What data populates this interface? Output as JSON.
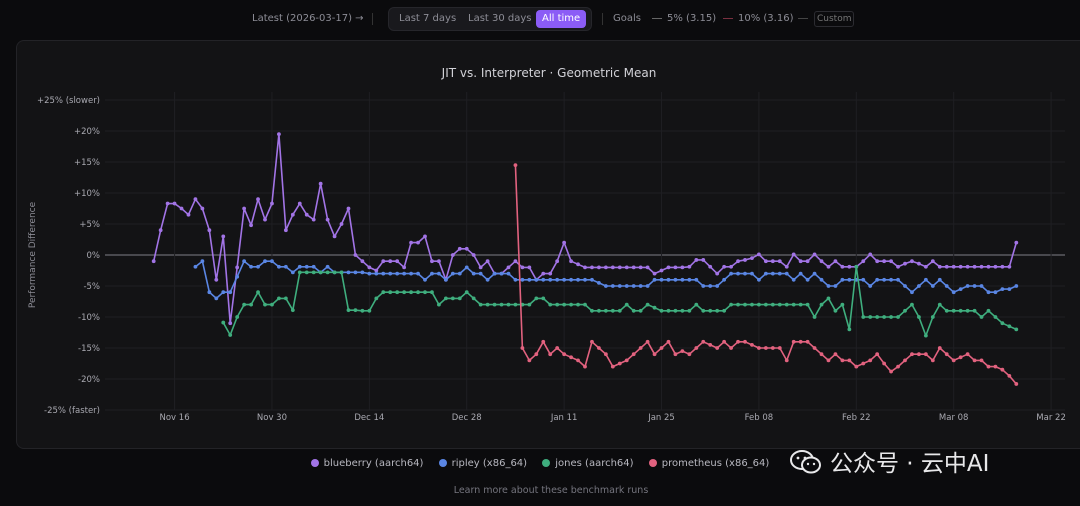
{
  "toolbar": {
    "latest": "Latest (2026-03-17) →",
    "ranges": [
      "Last 7 days",
      "Last 30 days",
      "All time"
    ],
    "active_range": "All time",
    "goals_label": "Goals",
    "goal_5": "5% (3.15)",
    "goal_10": "10% (3.16)",
    "custom_placeholder": "Custom",
    "accent": "#8b5cf6"
  },
  "learn_more": "Learn more about these benchmark runs",
  "watermark": "公众号 · 云中AI",
  "chart_data": {
    "type": "line",
    "title": "JIT vs. Interpreter · Geometric Mean",
    "xlabel": "",
    "ylabel": "Performance Difference",
    "ylim": [
      -25,
      25
    ],
    "xlim": [
      "2025-11-06",
      "2026-03-24"
    ],
    "grid": true,
    "legend": "bottom",
    "y_ticks": [
      {
        "value": 25,
        "label": "+25% (slower)"
      },
      {
        "value": 20,
        "label": "+20%"
      },
      {
        "value": 15,
        "label": "+15%"
      },
      {
        "value": 10,
        "label": "+10%"
      },
      {
        "value": 5,
        "label": "+5%"
      },
      {
        "value": 0,
        "label": "0%"
      },
      {
        "value": -5,
        "label": "-5%"
      },
      {
        "value": -10,
        "label": "-10%"
      },
      {
        "value": -15,
        "label": "-15%"
      },
      {
        "value": -20,
        "label": "-20%"
      },
      {
        "value": -25,
        "label": "-25% (faster)"
      }
    ],
    "x_ticks": [
      {
        "date": "2025-11-16",
        "label": "Nov 16"
      },
      {
        "date": "2025-11-30",
        "label": "Nov 30"
      },
      {
        "date": "2025-12-14",
        "label": "Dec 14"
      },
      {
        "date": "2025-12-28",
        "label": "Dec 28"
      },
      {
        "date": "2026-01-11",
        "label": "Jan 11"
      },
      {
        "date": "2026-01-25",
        "label": "Jan 25"
      },
      {
        "date": "2026-02-08",
        "label": "Feb 08"
      },
      {
        "date": "2026-02-22",
        "label": "Feb 22"
      },
      {
        "date": "2026-03-08",
        "label": "Mar 08"
      },
      {
        "date": "2026-03-22",
        "label": "Mar 22"
      }
    ],
    "x": [
      "2025-11-13",
      "2025-11-14",
      "2025-11-15",
      "2025-11-16",
      "2025-11-17",
      "2025-11-18",
      "2025-11-19",
      "2025-11-20",
      "2025-11-21",
      "2025-11-22",
      "2025-11-23",
      "2025-11-24",
      "2025-11-25",
      "2025-11-26",
      "2025-11-27",
      "2025-11-28",
      "2025-11-29",
      "2025-11-30",
      "2025-12-01",
      "2025-12-02",
      "2025-12-03",
      "2025-12-04",
      "2025-12-05",
      "2025-12-06",
      "2025-12-07",
      "2025-12-08",
      "2025-12-09",
      "2025-12-10",
      "2025-12-11",
      "2025-12-12",
      "2025-12-13",
      "2025-12-14",
      "2025-12-15",
      "2025-12-16",
      "2025-12-17",
      "2025-12-18",
      "2025-12-19",
      "2025-12-20",
      "2025-12-21",
      "2025-12-22",
      "2025-12-23",
      "2025-12-24",
      "2025-12-25",
      "2025-12-26",
      "2025-12-27",
      "2025-12-28",
      "2025-12-29",
      "2025-12-30",
      "2025-12-31",
      "2026-01-01",
      "2026-01-02",
      "2026-01-03",
      "2026-01-04",
      "2026-01-05",
      "2026-01-06",
      "2026-01-07",
      "2026-01-08",
      "2026-01-09",
      "2026-01-10",
      "2026-01-11",
      "2026-01-12",
      "2026-01-13",
      "2026-01-14",
      "2026-01-15",
      "2026-01-16",
      "2026-01-17",
      "2026-01-18",
      "2026-01-19",
      "2026-01-20",
      "2026-01-21",
      "2026-01-22",
      "2026-01-23",
      "2026-01-24",
      "2026-01-25",
      "2026-01-26",
      "2026-01-27",
      "2026-01-28",
      "2026-01-29",
      "2026-01-30",
      "2026-01-31",
      "2026-02-01",
      "2026-02-02",
      "2026-02-03",
      "2026-02-04",
      "2026-02-05",
      "2026-02-06",
      "2026-02-07",
      "2026-02-08",
      "2026-02-09",
      "2026-02-10",
      "2026-02-11",
      "2026-02-12",
      "2026-02-13",
      "2026-02-14",
      "2026-02-15",
      "2026-02-16",
      "2026-02-17",
      "2026-02-18",
      "2026-02-19",
      "2026-02-20",
      "2026-02-21",
      "2026-02-22",
      "2026-02-23",
      "2026-02-24",
      "2026-02-25",
      "2026-02-26",
      "2026-02-27",
      "2026-02-28",
      "2026-03-01",
      "2026-03-02",
      "2026-03-03",
      "2026-03-04",
      "2026-03-05",
      "2026-03-06",
      "2026-03-07",
      "2026-03-08",
      "2026-03-09",
      "2026-03-10",
      "2026-03-11",
      "2026-03-12",
      "2026-03-13",
      "2026-03-14",
      "2026-03-15",
      "2026-03-16",
      "2026-03-17"
    ],
    "series": [
      {
        "name": "blueberry (aarch64)",
        "color": "#a274e6",
        "values": [
          -1,
          4,
          8.3,
          8.3,
          7.5,
          6.5,
          9,
          7.5,
          4,
          -4,
          3,
          -11,
          -2,
          7.5,
          4.8,
          9,
          5.7,
          8.3,
          19.5,
          4,
          6.5,
          8.3,
          6.5,
          5.7,
          11.5,
          5.7,
          3,
          5,
          7.5,
          0,
          -1,
          -2,
          -2.5,
          -1,
          -1,
          -1,
          -2,
          2,
          2,
          3,
          -1,
          -1,
          -4,
          0,
          1,
          1,
          0,
          -2,
          -1,
          -3,
          -3,
          -2,
          -1,
          -2,
          -2,
          -4,
          -3,
          -3,
          -1,
          2,
          -1,
          -1.5,
          -2,
          -2,
          -2,
          -2,
          -2,
          -2,
          -2,
          -2,
          -2,
          -2,
          -3,
          -2.5,
          -2,
          -2,
          -2,
          -1.9,
          -0.8,
          -0.8,
          -1.9,
          -3,
          -1.9,
          -1.9,
          -1,
          -0.8,
          -0.5,
          0.1,
          -1,
          -1,
          -1,
          -1.9,
          0.1,
          -1,
          -1,
          0.1,
          -1,
          -1.9,
          -1,
          -1.9,
          -1.9,
          -1.9,
          -1,
          0.1,
          -1,
          -1,
          -1,
          -1.9,
          -1.4,
          -1,
          -1.4,
          -1.9,
          -1,
          -1.9,
          -1.9,
          -1.9,
          -1.9,
          -1.9,
          -1.9,
          -1.9,
          -1.9,
          -1.9,
          -1.9,
          -1.9,
          2
        ]
      },
      {
        "name": "ripley (x86_64)",
        "color": "#5a86e4",
        "values": [
          null,
          null,
          null,
          null,
          null,
          null,
          -1.9,
          -1,
          -6,
          -7,
          -6,
          -6,
          -3.5,
          -1,
          -1.9,
          -1.9,
          -1,
          -1,
          -1.9,
          -1.9,
          -2.8,
          -1.9,
          -1.9,
          -1.9,
          -2.8,
          -1.9,
          -2.8,
          -2.8,
          -2.8,
          -2.8,
          -2.8,
          -3,
          -3,
          -3,
          -3,
          -3,
          -3,
          -3,
          -3,
          -4,
          -3,
          -3,
          -4,
          -3,
          -3,
          -2,
          -3,
          -3,
          -4,
          -3,
          -3,
          -3,
          -4,
          -4,
          -4,
          -4,
          -4,
          -4,
          -4,
          -4,
          -4,
          -4,
          -4,
          -4,
          -4.5,
          -5,
          -5,
          -5,
          -5,
          -5,
          -5,
          -5,
          -4,
          -4,
          -4,
          -4,
          -4,
          -4,
          -4,
          -5,
          -5,
          -5,
          -4,
          -3,
          -3,
          -3,
          -3,
          -4,
          -3,
          -3,
          -3,
          -3,
          -4,
          -3,
          -4,
          -3,
          -4,
          -5,
          -5,
          -4,
          -4,
          -4,
          -4,
          -5,
          -4,
          -4,
          -4,
          -4,
          -5,
          -6,
          -5,
          -4,
          -5,
          -4,
          -5,
          -6,
          -5.5,
          -5,
          -5,
          -5,
          -6,
          -6,
          -5.5,
          -5.5,
          -5
        ]
      },
      {
        "name": "jones (aarch64)",
        "color": "#3fae7e",
        "values": [
          null,
          null,
          null,
          null,
          null,
          null,
          null,
          null,
          null,
          null,
          -10.9,
          -12.9,
          -10,
          -8,
          -8,
          -6,
          -8,
          -8,
          -7,
          -7,
          -8.9,
          -2.8,
          -2.8,
          -2.8,
          -2.8,
          -2.8,
          -2.8,
          -2.8,
          -8.9,
          -8.9,
          -9,
          -9,
          -7,
          -6,
          -6,
          -6,
          -6,
          -6,
          -6,
          -6,
          -6,
          -8,
          -7,
          -7,
          -7,
          -6,
          -7,
          -8,
          -8,
          -8,
          -8,
          -8,
          -8,
          -8,
          -8,
          -7,
          -7,
          -8,
          -8,
          -8,
          -8,
          -8,
          -8,
          -9,
          -9,
          -9,
          -9,
          -9,
          -8,
          -9,
          -9,
          -8,
          -8.5,
          -9,
          -9,
          -9,
          -9,
          -9,
          -8,
          -9,
          -9,
          -9,
          -9,
          -8,
          -8,
          -8,
          -8,
          -8,
          -8,
          -8,
          -8,
          -8,
          -8,
          -8,
          -8,
          -10,
          -8,
          -7,
          -9,
          -8,
          -12,
          -1.9,
          -10,
          -10,
          -10,
          -10,
          -10,
          -10,
          -9,
          -8,
          -10,
          -13,
          -10,
          -8,
          -9,
          -9,
          -9,
          -9,
          -9,
          -10,
          -9,
          -10,
          -11,
          -11.5,
          -12
        ]
      },
      {
        "name": "prometheus (x86_64)",
        "color": "#e2627f",
        "values": [
          null,
          null,
          null,
          null,
          null,
          null,
          null,
          null,
          null,
          null,
          null,
          null,
          null,
          null,
          null,
          null,
          null,
          null,
          null,
          null,
          null,
          null,
          null,
          null,
          null,
          null,
          null,
          null,
          null,
          null,
          null,
          null,
          null,
          null,
          null,
          null,
          null,
          null,
          null,
          null,
          null,
          null,
          null,
          null,
          null,
          null,
          null,
          null,
          null,
          null,
          null,
          null,
          14.5,
          -15,
          -17,
          -16,
          -14,
          -16,
          -15,
          -16,
          -16.5,
          -17,
          -18,
          -14,
          -15,
          -16,
          -18,
          -17.5,
          -17,
          -16,
          -15,
          -14,
          -16,
          -15,
          -14,
          -16,
          -15.5,
          -16,
          -15,
          -14,
          -14.5,
          -15,
          -14,
          -15,
          -14,
          -14,
          -14.5,
          -15,
          -15,
          -15,
          -15,
          -17,
          -14,
          -14,
          -14,
          -15,
          -16,
          -17,
          -16,
          -17,
          -17,
          -18,
          -17.5,
          -17,
          -16,
          -17.5,
          -18.8,
          -18,
          -17,
          -16,
          -16,
          -16,
          -17,
          -15,
          -16,
          -17,
          -16.5,
          -16,
          -17,
          -17,
          -18,
          -18,
          -18.5,
          -19.5,
          -20.8
        ]
      }
    ]
  }
}
